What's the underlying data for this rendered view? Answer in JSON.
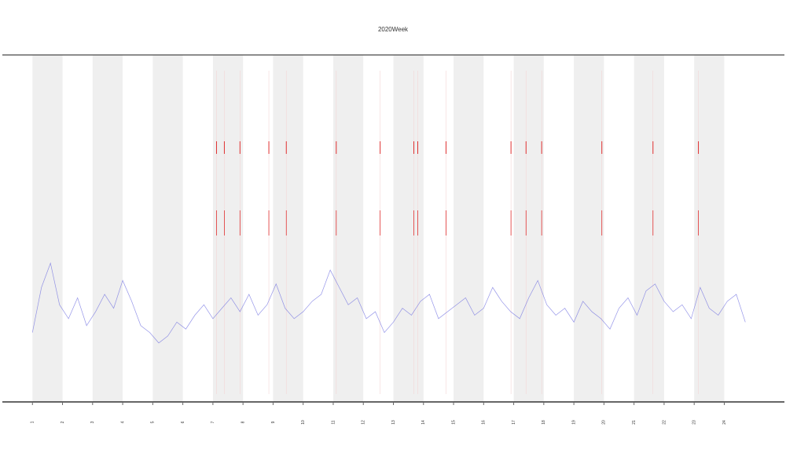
{
  "chart_data": {
    "type": "line",
    "title": "2020Week",
    "x": [
      1,
      1.3,
      1.6,
      1.9,
      2.2,
      2.5,
      2.8,
      3.1,
      3.4,
      3.7,
      4,
      4.3,
      4.6,
      4.9,
      5.2,
      5.5,
      5.8,
      6.1,
      6.4,
      6.7,
      7,
      7.3,
      7.6,
      7.9,
      8.2,
      8.5,
      8.8,
      9.1,
      9.4,
      9.7,
      10,
      10.3,
      10.6,
      10.9,
      11.2,
      11.5,
      11.8,
      12.1,
      12.4,
      12.7,
      13,
      13.3,
      13.6,
      13.9,
      14.2,
      14.5,
      14.8,
      15.1,
      15.4,
      15.7,
      16,
      16.3,
      16.6,
      16.9,
      17.2,
      17.5,
      17.8,
      18.1,
      18.4,
      18.7,
      19,
      19.3,
      19.6,
      19.9,
      20.2,
      20.5,
      20.8,
      21.1,
      21.4,
      21.7,
      22,
      22.3,
      22.6,
      22.9,
      23.2,
      23.5,
      23.8,
      24.1,
      24.4,
      24.7
    ],
    "series": [
      {
        "color": "#6a6ae0",
        "values": [
          20,
          33,
          40,
          28,
          24,
          30,
          22,
          26,
          31,
          27,
          35,
          29,
          22,
          20,
          17,
          19,
          23,
          21,
          25,
          28,
          24,
          27,
          30,
          26,
          31,
          25,
          28,
          34,
          27,
          24,
          26,
          29,
          31,
          38,
          33,
          28,
          30,
          24,
          26,
          20,
          23,
          27,
          25,
          29,
          31,
          24,
          26,
          28,
          30,
          25,
          27,
          33,
          29,
          26,
          24,
          30,
          35,
          28,
          25,
          27,
          23,
          29,
          26,
          24,
          21,
          27,
          30,
          25,
          32,
          34,
          29,
          26,
          28,
          24,
          33,
          27,
          25,
          29,
          31,
          23
        ]
      }
    ],
    "events": [
      7.12,
      7.38,
      7.9,
      8.86,
      9.44,
      11.1,
      12.56,
      13.68,
      13.81,
      14.75,
      16.91,
      17.41,
      17.93,
      19.93,
      21.63,
      23.14
    ],
    "event_color": "#e03030",
    "shaded": [
      [
        1,
        2
      ],
      [
        3,
        4
      ],
      [
        5,
        6
      ],
      [
        7,
        8
      ],
      [
        9,
        10
      ],
      [
        11,
        12
      ],
      [
        13,
        14
      ],
      [
        15,
        16
      ],
      [
        17,
        18
      ],
      [
        19,
        20
      ],
      [
        21,
        22
      ],
      [
        23,
        24
      ]
    ],
    "xlim": [
      0,
      26
    ],
    "ylim": [
      0,
      100
    ],
    "xticks": [
      1,
      2,
      3,
      4,
      5,
      6,
      7,
      8,
      9,
      10,
      11,
      12,
      13,
      14,
      15,
      16,
      17,
      18,
      19,
      20,
      21,
      22,
      23,
      24
    ]
  }
}
